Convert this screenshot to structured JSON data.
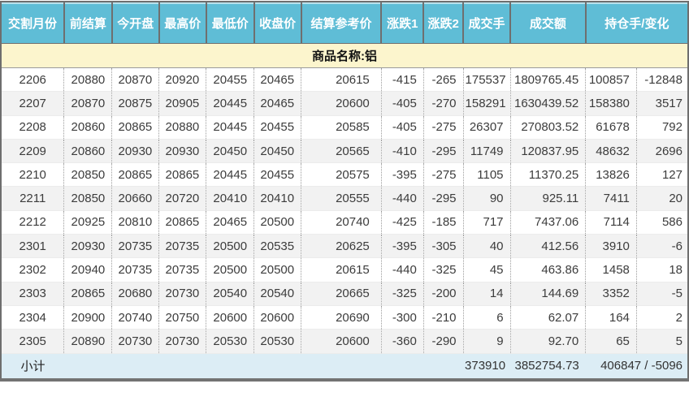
{
  "colors": {
    "header_bg": "#5FBDD6",
    "header_text": "#FFFFFF",
    "group_row_bg": "#FCF5CD",
    "alt_row_bg": "#F2F2F2",
    "footer_bg": "#DCEDF5",
    "outer_border": "#6E6E6E",
    "dotted_separator": "#9C9C9C",
    "body_text": "#3C3C3C"
  },
  "table": {
    "columns": [
      "交割月份",
      "前结算",
      "今开盘",
      "最高价",
      "最低价",
      "收盘价",
      "结算参考价",
      "涨跌1",
      "涨跌2",
      "成交手",
      "成交额",
      "持仓手/变化"
    ],
    "column_keys": [
      "delivery-month",
      "prev-settle",
      "open",
      "high",
      "low",
      "close",
      "settle-ref",
      "change1",
      "change2",
      "volume",
      "turnover",
      "open-interest",
      "oi-change"
    ],
    "group_label": "商品名称:铝",
    "rows": [
      [
        "2206",
        "20880",
        "20870",
        "20920",
        "20455",
        "20465",
        "20615",
        "-415",
        "-265",
        "175537",
        "1809765.45",
        "100857",
        "-12848"
      ],
      [
        "2207",
        "20870",
        "20875",
        "20905",
        "20445",
        "20465",
        "20600",
        "-405",
        "-270",
        "158291",
        "1630439.52",
        "158380",
        "3517"
      ],
      [
        "2208",
        "20860",
        "20865",
        "20880",
        "20445",
        "20455",
        "20585",
        "-405",
        "-275",
        "26307",
        "270803.52",
        "61678",
        "792"
      ],
      [
        "2209",
        "20860",
        "20930",
        "20930",
        "20450",
        "20450",
        "20565",
        "-410",
        "-295",
        "11749",
        "120837.95",
        "48632",
        "2696"
      ],
      [
        "2210",
        "20850",
        "20865",
        "20865",
        "20445",
        "20455",
        "20575",
        "-395",
        "-275",
        "1105",
        "11370.25",
        "13826",
        "127"
      ],
      [
        "2211",
        "20850",
        "20660",
        "20720",
        "20410",
        "20410",
        "20555",
        "-440",
        "-295",
        "90",
        "925.11",
        "7411",
        "20"
      ],
      [
        "2212",
        "20925",
        "20810",
        "20865",
        "20465",
        "20500",
        "20740",
        "-425",
        "-185",
        "717",
        "7437.06",
        "7114",
        "586"
      ],
      [
        "2301",
        "20930",
        "20735",
        "20735",
        "20500",
        "20535",
        "20625",
        "-395",
        "-305",
        "40",
        "412.56",
        "3910",
        "-6"
      ],
      [
        "2302",
        "20940",
        "20735",
        "20735",
        "20500",
        "20500",
        "20615",
        "-440",
        "-325",
        "45",
        "463.86",
        "1458",
        "18"
      ],
      [
        "2303",
        "20865",
        "20680",
        "20730",
        "20540",
        "20540",
        "20665",
        "-325",
        "-200",
        "14",
        "144.69",
        "3352",
        "-5"
      ],
      [
        "2304",
        "20900",
        "20740",
        "20750",
        "20600",
        "20600",
        "20690",
        "-300",
        "-210",
        "6",
        "62.07",
        "164",
        "2"
      ],
      [
        "2305",
        "20890",
        "20730",
        "20730",
        "20530",
        "20530",
        "20600",
        "-360",
        "-290",
        "9",
        "92.70",
        "65",
        "5"
      ]
    ],
    "footer": {
      "label": "小计",
      "volume_total": "373910",
      "turnover_total": "3852754.73",
      "open_interest_total": "406847 / -5096"
    }
  }
}
